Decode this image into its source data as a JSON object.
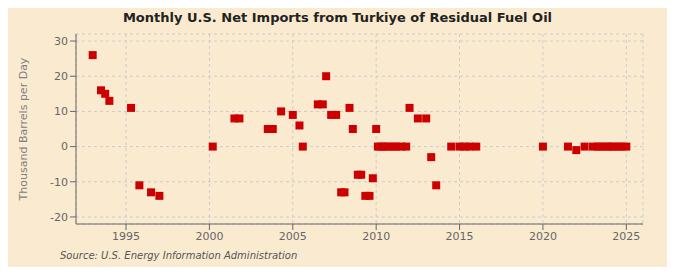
{
  "chart_data": {
    "type": "scatter",
    "title": "Monthly U.S. Net Imports from Turkiye of Residual Fuel Oil",
    "ylabel": "Thousand Barrels per Day",
    "source": "Source: U.S. Energy Information Administration",
    "background_color": "#faebd0",
    "color": "#cc0000",
    "marker": "square",
    "grid": true,
    "xlim": [
      1992.0,
      2026.0
    ],
    "ylim": [
      -22,
      32
    ],
    "xticks": [
      1995,
      2000,
      2005,
      2010,
      2015,
      2020,
      2025
    ],
    "yticks": [
      -20,
      -10,
      0,
      10,
      20,
      30
    ],
    "x": [
      1993.0,
      1993.5,
      1993.75,
      1994.0,
      1995.3,
      1995.8,
      1996.5,
      1997.0,
      2000.2,
      2001.5,
      2001.8,
      2003.5,
      2003.8,
      2004.3,
      2005.0,
      2005.4,
      2005.6,
      2006.5,
      2006.8,
      2007.0,
      2007.3,
      2007.6,
      2007.9,
      2008.1,
      2008.4,
      2008.6,
      2008.9,
      2009.1,
      2009.35,
      2009.6,
      2009.8,
      2010.0,
      2010.1,
      2010.3,
      2010.5,
      2010.7,
      2011.0,
      2011.2,
      2011.5,
      2011.8,
      2012.0,
      2012.5,
      2013.0,
      2013.3,
      2013.6,
      2014.5,
      2015.0,
      2015.3,
      2015.6,
      2016.0,
      2020.0,
      2021.5,
      2022.0,
      2022.5,
      2023.0,
      2023.3,
      2023.5,
      2023.8,
      2024.0,
      2024.2,
      2024.5,
      2024.7,
      2025.0
    ],
    "values": [
      26,
      16,
      15,
      13,
      11,
      -11,
      -13,
      -14,
      0,
      8,
      8,
      5,
      5,
      10,
      9,
      6,
      0,
      12,
      12,
      20,
      9,
      9,
      -13,
      -13,
      11,
      5,
      -8,
      -8,
      -14,
      -14,
      -9,
      5,
      0,
      0,
      0,
      0,
      0,
      0,
      0,
      0,
      11,
      8,
      8,
      -3,
      -11,
      0,
      0,
      0,
      0,
      0,
      0,
      0,
      -1,
      0,
      0,
      0,
      0,
      0,
      0,
      0,
      0,
      0,
      0
    ]
  }
}
